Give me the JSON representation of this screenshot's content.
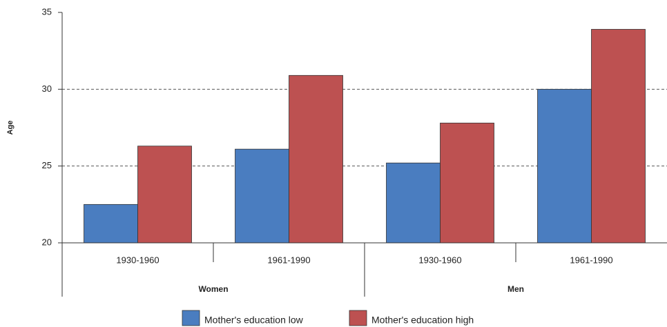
{
  "chart_data": {
    "type": "bar",
    "ylabel": "Age",
    "categories": [
      "1930-1960",
      "1961-1990",
      "1930-1960",
      "1961-1990"
    ],
    "groups": [
      "Women",
      "Men"
    ],
    "series": [
      {
        "name": "Mother's education low",
        "color": "#4a7dc0",
        "values": [
          22.5,
          26.1,
          25.2,
          30.0
        ]
      },
      {
        "name": "Mother's education high",
        "color": "#bd5151",
        "values": [
          26.3,
          30.9,
          27.8,
          33.9
        ]
      }
    ],
    "ylim": [
      20,
      35
    ],
    "yticks": [
      20,
      25,
      30,
      35
    ],
    "grid": true,
    "legend": "bottom"
  }
}
